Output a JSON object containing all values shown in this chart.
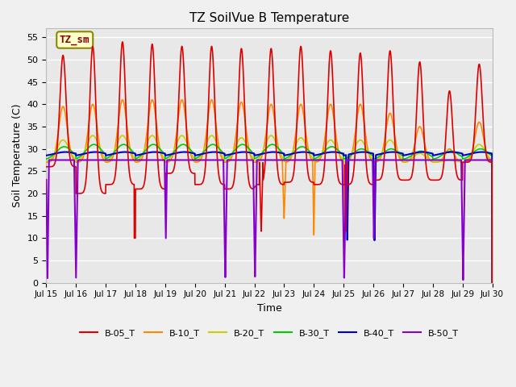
{
  "title": "TZ SoilVue B Temperature",
  "xlabel": "Time",
  "ylabel": "Soil Temperature (C)",
  "ylim": [
    0,
    57
  ],
  "xlim": [
    0,
    360
  ],
  "annotation_text": "TZ_sm",
  "annotation_color": "#880000",
  "annotation_bg": "#ffffcc",
  "annotation_border": "#888800",
  "fig_facecolor": "#f0f0f0",
  "plot_facecolor": "#e8e8e8",
  "series": {
    "B-05_T": {
      "color": "#dd0000",
      "lw": 1.2
    },
    "B-10_T": {
      "color": "#ff8800",
      "lw": 1.2
    },
    "B-20_T": {
      "color": "#cccc00",
      "lw": 1.2
    },
    "B-30_T": {
      "color": "#00cc00",
      "lw": 1.2
    },
    "B-40_T": {
      "color": "#0000cc",
      "lw": 1.5
    },
    "B-50_T": {
      "color": "#8800cc",
      "lw": 1.5
    }
  },
  "xticks": [
    0,
    24,
    48,
    72,
    96,
    120,
    144,
    168,
    192,
    216,
    240,
    264,
    288,
    312,
    336,
    360
  ],
  "xticklabels": [
    "Jul 15",
    "Jul 16",
    "Jul 17",
    "Jul 18",
    "Jul 19",
    "Jul 20",
    "Jul 21",
    "Jul 22",
    "Jul 23",
    "Jul 24",
    "Jul 25",
    "Jul 26",
    "Jul 27",
    "Jul 28",
    "Jul 29",
    "Jul 30"
  ],
  "yticks": [
    0,
    5,
    10,
    15,
    20,
    25,
    30,
    35,
    40,
    45,
    50,
    55
  ]
}
